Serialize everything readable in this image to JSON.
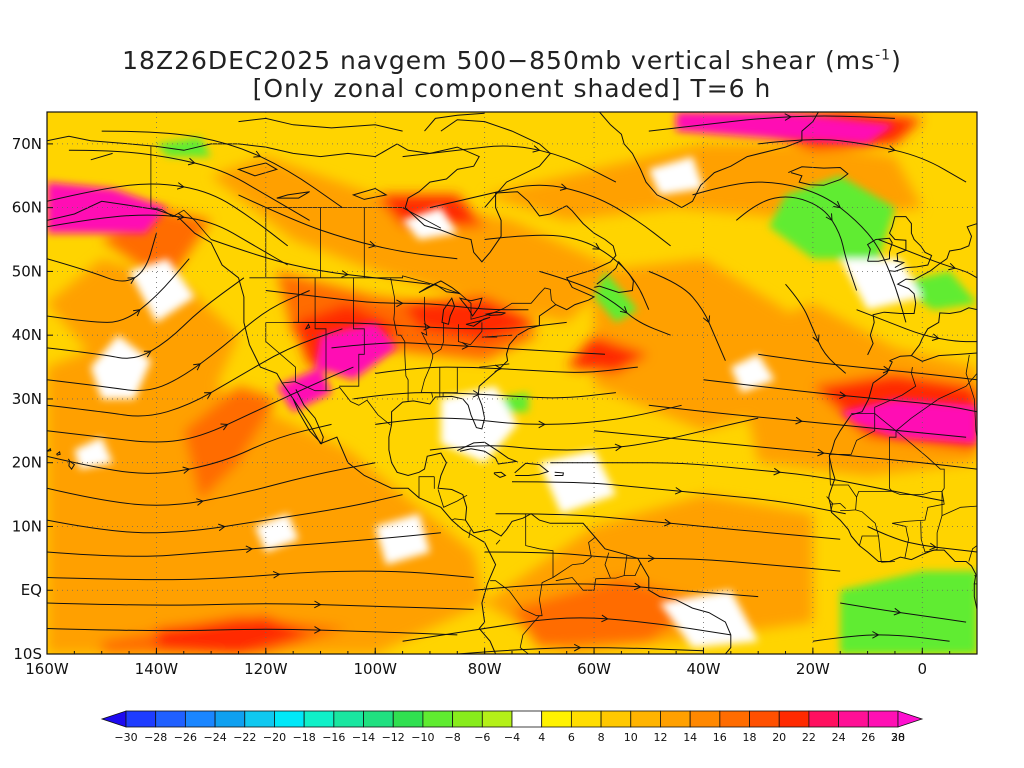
{
  "title": {
    "line1_prefix": "18Z26DEC2025 navgem 500−850mb vertical shear (ms",
    "line1_sup": "-1",
    "line1_suffix": ")",
    "line2": "[Only zonal component shaded] T=6 h"
  },
  "map": {
    "lon_range": [
      -160,
      10
    ],
    "lat_range": [
      -10,
      75
    ],
    "lon_ticks": [
      {
        "value": -160,
        "label": "160W"
      },
      {
        "value": -140,
        "label": "140W"
      },
      {
        "value": -120,
        "label": "120W"
      },
      {
        "value": -100,
        "label": "100W"
      },
      {
        "value": -80,
        "label": "80W"
      },
      {
        "value": -60,
        "label": "60W"
      },
      {
        "value": -40,
        "label": "40W"
      },
      {
        "value": -20,
        "label": "20W"
      },
      {
        "value": 0,
        "label": "0"
      }
    ],
    "lat_ticks": [
      {
        "value": 70,
        "label": "70N"
      },
      {
        "value": 60,
        "label": "60N"
      },
      {
        "value": 50,
        "label": "50N"
      },
      {
        "value": 40,
        "label": "40N"
      },
      {
        "value": 30,
        "label": "30N"
      },
      {
        "value": 20,
        "label": "20N"
      },
      {
        "value": 10,
        "label": "10N"
      },
      {
        "value": 0,
        "label": "EQ"
      },
      {
        "value": -10,
        "label": "10S"
      }
    ],
    "gridlines": "dotted"
  },
  "colorbar": {
    "min": -30,
    "max": 30,
    "labels": [
      "−30",
      "−28",
      "−26",
      "−24",
      "−22",
      "−20",
      "−18",
      "−16",
      "−14",
      "−12",
      "−10",
      "−8",
      "−6",
      "−4",
      "4",
      "6",
      "8",
      "10",
      "12",
      "14",
      "16",
      "18",
      "20",
      "22",
      "24",
      "26",
      "28",
      "30"
    ],
    "colors": [
      "#1e0af0",
      "#1e3cff",
      "#2060ff",
      "#1a86ff",
      "#0fa0f0",
      "#10c8f0",
      "#00e8f8",
      "#10f0c8",
      "#19e6a0",
      "#20e080",
      "#30e050",
      "#60ec30",
      "#88ec1c",
      "#b4f018",
      "#ffffff",
      "#fff200",
      "#ffdd00",
      "#ffc800",
      "#ffb400",
      "#ffa000",
      "#ff8800",
      "#ff6c00",
      "#ff5000",
      "#ff2a00",
      "#ff1060",
      "#ff1096",
      "#ff10b4",
      "#ff10d0"
    ]
  },
  "colors": {
    "bg": "#ffffff",
    "coast": "#111111",
    "stream": "#111111",
    "yellow": "#fff200",
    "orange": "#ffa000",
    "darkorange": "#ff6c00",
    "red": "#ff2a00",
    "magenta": "#ff10b4",
    "green": "#60ec30"
  }
}
